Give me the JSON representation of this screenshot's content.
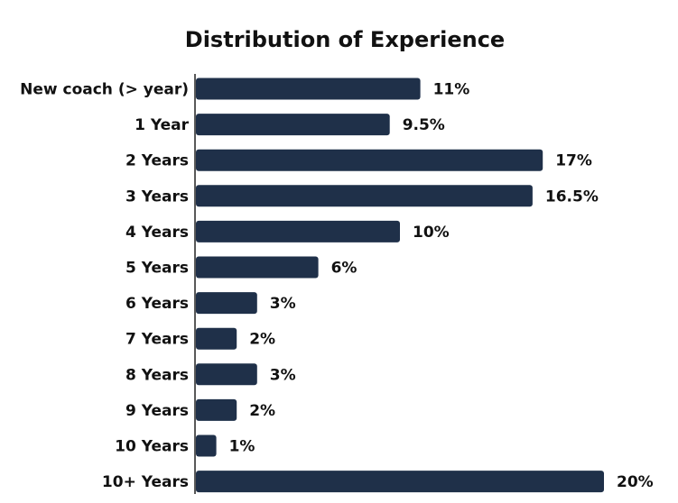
{
  "chart_data": {
    "type": "bar",
    "orientation": "horizontal",
    "title": "Distribution of Experience",
    "categories": [
      "New coach (> year)",
      "1 Year",
      "2 Years",
      "3 Years",
      "4 Years",
      "5 Years",
      "6 Years",
      "7 Years",
      "8 Years",
      "9 Years",
      "10 Years",
      "10+ Years"
    ],
    "values": [
      11,
      9.5,
      17,
      16.5,
      10,
      6,
      3,
      2,
      3,
      2,
      1,
      20
    ],
    "value_labels": [
      "11%",
      "9.5%",
      "17%",
      "16.5%",
      "10%",
      "6%",
      "3%",
      "2%",
      "3%",
      "2%",
      "1%",
      "20%"
    ],
    "unit": "%",
    "xlim": [
      0,
      20
    ],
    "grid": false,
    "legend": "none",
    "bar_color": "#1f3049"
  }
}
